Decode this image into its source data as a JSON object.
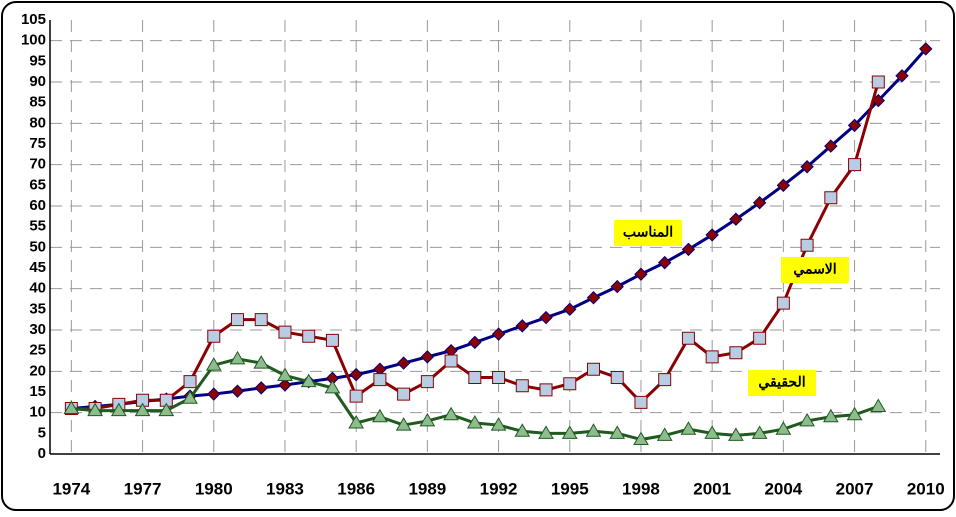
{
  "chart_data": {
    "type": "line",
    "x": [
      1974,
      1975,
      1976,
      1977,
      1978,
      1979,
      1980,
      1981,
      1982,
      1983,
      1984,
      1985,
      1986,
      1987,
      1988,
      1989,
      1990,
      1991,
      1992,
      1993,
      1994,
      1995,
      1996,
      1997,
      1998,
      1999,
      2000,
      2001,
      2002,
      2003,
      2004,
      2005,
      2006,
      2007,
      2008,
      2009,
      2010
    ],
    "series": [
      {
        "name": "المناسب",
        "color": "#000080",
        "marker": "diamond",
        "marker_color": "#8b0000",
        "values": [
          11,
          11.5,
          12,
          12.7,
          13.3,
          14,
          14.5,
          15.2,
          16,
          16.7,
          17.5,
          18.3,
          19.2,
          20.5,
          22,
          23.5,
          25,
          27,
          29,
          31,
          33,
          35,
          37.8,
          40.5,
          43.5,
          46.3,
          49.5,
          53,
          56.8,
          60.8,
          65,
          69.5,
          74.5,
          79.5,
          85.5,
          91.5,
          98
        ]
      },
      {
        "name": "الاسمي",
        "color": "#8b0000",
        "marker": "square",
        "marker_color": "#b8cce4",
        "values": [
          11,
          11,
          12,
          13,
          13,
          17.5,
          28.5,
          32.5,
          32.5,
          29.5,
          28.5,
          27.5,
          14,
          18,
          14.5,
          17.5,
          22.5,
          18.5,
          18.5,
          16.5,
          15.5,
          17,
          20.5,
          18.5,
          12.5,
          18,
          28,
          23.5,
          24.5,
          28,
          36.5,
          50.5,
          62,
          70,
          90,
          null,
          null
        ]
      },
      {
        "name": "الحقيقي",
        "color": "#1f5a1f",
        "marker": "triangle",
        "marker_color": "#8fbc8f",
        "values": [
          11,
          10.5,
          10.5,
          10.5,
          10.5,
          13.5,
          21.5,
          23,
          22,
          19,
          17.5,
          16,
          7.5,
          9,
          7,
          8,
          9.5,
          7.5,
          7,
          5.5,
          5,
          5,
          5.5,
          5,
          3.5,
          4.5,
          6,
          5,
          4.5,
          5,
          6,
          8,
          9,
          9.5,
          11.5,
          null,
          null
        ]
      }
    ],
    "xlim": [
      1973.1,
      2010.6
    ],
    "xticks": [
      1974,
      1977,
      1980,
      1983,
      1986,
      1989,
      1992,
      1995,
      1998,
      2001,
      2004,
      2007,
      2010
    ],
    "ylim": [
      0,
      105
    ],
    "yticks": [
      0,
      5,
      10,
      15,
      20,
      25,
      30,
      35,
      40,
      45,
      50,
      55,
      60,
      65,
      70,
      75,
      80,
      85,
      90,
      95,
      100,
      105
    ],
    "grid": true
  }
}
